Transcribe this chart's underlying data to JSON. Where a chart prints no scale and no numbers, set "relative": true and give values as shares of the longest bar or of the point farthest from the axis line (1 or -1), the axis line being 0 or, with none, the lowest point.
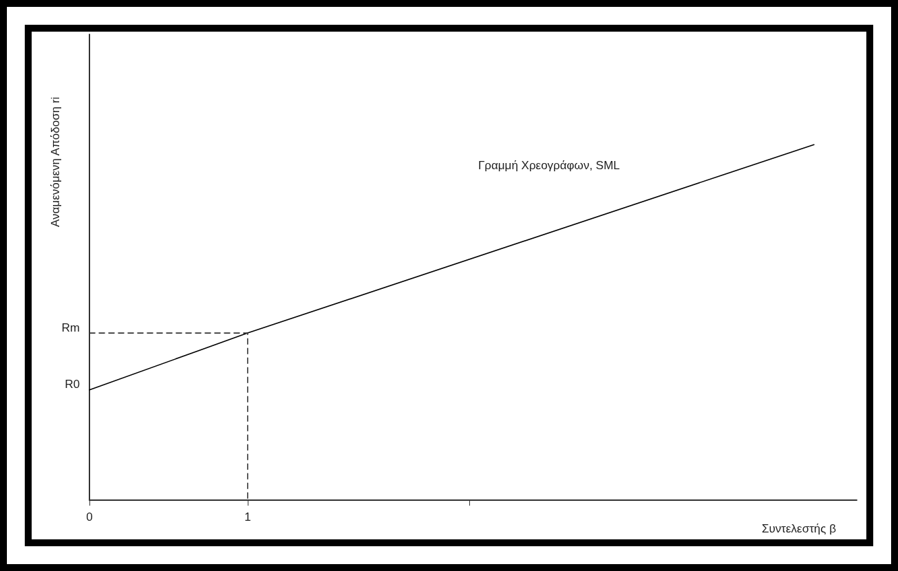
{
  "chart_data": {
    "type": "line",
    "xlabel": "Συντελεστής β",
    "ylabel": "Αναμενόμενη Απόδοση ri",
    "relative": true,
    "xlim": [
      0,
      4.85
    ],
    "xticks": [
      0,
      1,
      {
        "value": 2.4,
        "label": null
      }
    ],
    "series": [
      {
        "name": "Γραμμή Χρεογράφων, SML",
        "color": "#000000",
        "x": [
          0,
          1,
          4.58
        ],
        "values": [
          0.31,
          0.47,
          1
        ]
      },
      {
        "color": "#333333",
        "line_style": "dashed",
        "x": [
          0,
          1,
          1
        ],
        "values": [
          0.47,
          0.47,
          0
        ]
      }
    ],
    "annotations": [
      {
        "text": "Rm",
        "x": 0,
        "y": 0.47
      },
      {
        "text": "R0",
        "x": 0,
        "y": 0.31
      }
    ],
    "grid": false,
    "legend": false,
    "marker": "none"
  }
}
